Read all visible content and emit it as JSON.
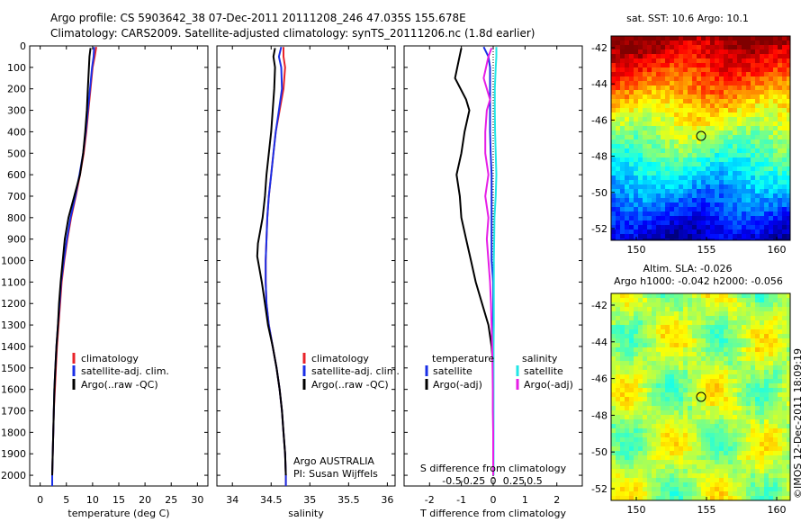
{
  "header": {
    "line1": "Argo profile: CS 5903642_38 07-Dec-2011 20111208_246 47.035S 155.678E",
    "line2": "Climatology: CARS2009. Satellite-adjusted climatology: synTS_20111206.nc (1.8d earlier)"
  },
  "colors": {
    "red": "#e8232a",
    "blue": "#1a2fe6",
    "black": "#000000",
    "cyan": "#22e6e6",
    "magenta": "#e61ee6"
  },
  "chart_data": [
    {
      "type": "line",
      "name": "temperature-profile",
      "xlabel": "temperature (deg C)",
      "xlim": [
        -2,
        32
      ],
      "xticks": [
        0,
        5,
        10,
        15,
        20,
        25,
        30
      ],
      "ylim": [
        2050,
        0
      ],
      "yticks": [
        0,
        100,
        200,
        300,
        400,
        500,
        600,
        700,
        800,
        900,
        1000,
        1100,
        1200,
        1300,
        1400,
        1500,
        1600,
        1700,
        1800,
        1900,
        2000
      ],
      "legend": [
        "climatology",
        "satellite-adj. clim.",
        "Argo(..raw -QC)"
      ],
      "series": [
        {
          "name": "climatology",
          "color": "red",
          "x": [
            10.7,
            10.4,
            10.0,
            9.6,
            9.2,
            8.8,
            8.3,
            7.6,
            6.8,
            5.9,
            5.2,
            4.6,
            4.1,
            3.8,
            3.5,
            3.2,
            3.0,
            2.8,
            2.6,
            2.5,
            2.4,
            2.3,
            2.3
          ],
          "y": [
            5,
            50,
            100,
            200,
            300,
            400,
            500,
            600,
            700,
            800,
            900,
            1000,
            1100,
            1200,
            1300,
            1400,
            1500,
            1600,
            1700,
            1800,
            1900,
            2000,
            2050
          ]
        },
        {
          "name": "satellite-adj. clim.",
          "color": "blue",
          "x": [
            10.3,
            10.2,
            9.9,
            9.5,
            9.1,
            8.7,
            8.2,
            7.5,
            6.7,
            5.8,
            5.1,
            4.5,
            4.0,
            3.7,
            3.4,
            3.1,
            2.9,
            2.7,
            2.6,
            2.5,
            2.4,
            2.3,
            2.3
          ],
          "y": [
            5,
            50,
            100,
            200,
            300,
            400,
            500,
            600,
            700,
            800,
            900,
            1000,
            1100,
            1200,
            1300,
            1400,
            1500,
            1600,
            1700,
            1800,
            1900,
            2000,
            2050
          ]
        },
        {
          "name": "Argo(..raw -QC)",
          "color": "black",
          "x": [
            9.6,
            9.4,
            9.3,
            9.1,
            8.9,
            8.6,
            8.2,
            7.6,
            6.5,
            5.4,
            4.7,
            4.3,
            3.9,
            3.6,
            3.4,
            3.1,
            2.9,
            2.7,
            2.6,
            2.5,
            2.4,
            2.3
          ],
          "y": [
            10,
            50,
            100,
            200,
            300,
            400,
            500,
            600,
            700,
            800,
            900,
            1000,
            1100,
            1200,
            1300,
            1400,
            1500,
            1600,
            1700,
            1800,
            1900,
            2000
          ]
        }
      ]
    },
    {
      "type": "line",
      "name": "salinity-profile",
      "xlabel": "salinity",
      "xlim": [
        33.8,
        36.1
      ],
      "xticks": [
        34,
        34.5,
        35,
        35.5,
        36
      ],
      "ylim": [
        2050,
        0
      ],
      "legend": [
        "climatology",
        "satellite-adj. clim.",
        "Argo(..raw -QC)"
      ],
      "annotation": [
        "Argo AUSTRALIA",
        "PI: Susan Wijffels"
      ],
      "series": [
        {
          "name": "climatology",
          "color": "red",
          "x": [
            34.66,
            34.66,
            34.68,
            34.66,
            34.61,
            34.56,
            34.53,
            34.5,
            34.47,
            34.45,
            34.44,
            34.43,
            34.43,
            34.44,
            34.47,
            34.52,
            34.57,
            34.61,
            34.64,
            34.66,
            34.68,
            34.69,
            34.69
          ],
          "y": [
            5,
            50,
            100,
            200,
            300,
            400,
            500,
            600,
            700,
            800,
            900,
            1000,
            1100,
            1200,
            1300,
            1400,
            1500,
            1600,
            1700,
            1800,
            1900,
            2000,
            2050
          ]
        },
        {
          "name": "satellite-adj. clim.",
          "color": "blue",
          "x": [
            34.63,
            34.6,
            34.63,
            34.64,
            34.6,
            34.56,
            34.53,
            34.5,
            34.47,
            34.45,
            34.44,
            34.43,
            34.43,
            34.44,
            34.47,
            34.52,
            34.57,
            34.61,
            34.64,
            34.66,
            34.68,
            34.69,
            34.69
          ],
          "y": [
            5,
            50,
            100,
            200,
            300,
            400,
            500,
            600,
            700,
            800,
            900,
            1000,
            1100,
            1200,
            1300,
            1400,
            1500,
            1600,
            1700,
            1800,
            1900,
            2000,
            2050
          ]
        },
        {
          "name": "Argo(..raw -QC)",
          "color": "black",
          "x": [
            34.55,
            34.53,
            34.55,
            34.54,
            34.52,
            34.5,
            34.47,
            34.44,
            34.42,
            34.39,
            34.33,
            34.32,
            34.38,
            34.42,
            34.46,
            34.52,
            34.57,
            34.61,
            34.64,
            34.66,
            34.68,
            34.69
          ],
          "y": [
            10,
            50,
            100,
            200,
            300,
            400,
            500,
            600,
            700,
            800,
            920,
            980,
            1100,
            1200,
            1300,
            1400,
            1500,
            1600,
            1700,
            1800,
            1900,
            2000
          ]
        }
      ]
    },
    {
      "type": "line",
      "name": "difference-profile",
      "xlabel": "T difference from climatology",
      "xlim": [
        -2.8,
        2.8
      ],
      "xticks": [
        -2,
        -1,
        0,
        1,
        2
      ],
      "x2label": "S difference from climatology",
      "x2ticks": [
        "-0.5",
        "-0.25",
        "0",
        "0.25",
        "0.5"
      ],
      "ylim": [
        2050,
        0
      ],
      "legend": {
        "temperature": "temperature",
        "salinity": "salinity",
        "t_sat": "satellite",
        "t_argo": "Argo(-adj)",
        "s_sat": "satellite",
        "s_argo": "Argo(-adj)"
      },
      "series": [
        {
          "name": "temperature satellite",
          "color": "blue",
          "x": [
            -0.3,
            -0.15,
            -0.1,
            -0.1,
            -0.1,
            -0.1,
            -0.08,
            -0.05,
            -0.05,
            -0.05,
            -0.05,
            -0.05,
            0,
            0,
            0,
            0,
            0,
            0,
            0,
            0,
            0,
            0
          ],
          "y": [
            5,
            50,
            100,
            200,
            300,
            400,
            500,
            600,
            700,
            800,
            900,
            1000,
            1100,
            1200,
            1300,
            1400,
            1500,
            1600,
            1700,
            1800,
            1900,
            2000
          ]
        },
        {
          "name": "temperature Argo(-adj)",
          "color": "black",
          "x": [
            -1.0,
            -1.1,
            -1.2,
            -0.85,
            -0.75,
            -0.9,
            -1.0,
            -1.15,
            -1.05,
            -1.0,
            -0.85,
            -0.7,
            -0.55,
            -0.35,
            -0.15,
            -0.05,
            0,
            0,
            0,
            0,
            0,
            0
          ],
          "y": [
            10,
            80,
            150,
            250,
            300,
            400,
            500,
            600,
            700,
            800,
            900,
            1000,
            1100,
            1200,
            1300,
            1400,
            1500,
            1600,
            1700,
            1800,
            1900,
            2000
          ]
        },
        {
          "name": "salinity satellite",
          "color": "cyan",
          "x": [
            0.1,
            0.1,
            0.08,
            0.05,
            0.05,
            0.06,
            0.08,
            0.1,
            0.08,
            0.04,
            0.03,
            0.02,
            0.02,
            0.02,
            0.02,
            0.01,
            0.01,
            0.01,
            0.01,
            0.01,
            0.01,
            0.01
          ],
          "y": [
            5,
            50,
            100,
            200,
            300,
            400,
            500,
            600,
            700,
            800,
            900,
            1000,
            1100,
            1200,
            1300,
            1400,
            1500,
            1600,
            1700,
            1800,
            1900,
            2000
          ]
        },
        {
          "name": "salinity Argo(-adj)",
          "color": "magenta",
          "x": [
            -0.05,
            -0.15,
            -0.3,
            -0.1,
            -0.2,
            -0.25,
            -0.25,
            -0.15,
            -0.25,
            -0.15,
            -0.2,
            -0.15,
            -0.1,
            -0.07,
            -0.05,
            -0.03,
            -0.02,
            -0.01,
            -0.01,
            0,
            0,
            0
          ],
          "y": [
            10,
            50,
            150,
            250,
            300,
            400,
            500,
            600,
            700,
            800,
            900,
            1000,
            1100,
            1200,
            1300,
            1400,
            1500,
            1600,
            1700,
            1800,
            1900,
            2000
          ]
        }
      ]
    }
  ],
  "maps": {
    "sst": {
      "title": "sat. SST: 10.6 Argo: 10.1",
      "yticks": [
        "-42",
        "-44",
        "-46",
        "-48",
        "-50",
        "-52"
      ],
      "xticks": [
        "150",
        "155",
        "160"
      ]
    },
    "sla": {
      "title1": "Altim. SLA: -0.026",
      "title2": "Argo h1000: -0.042 h2000: -0.056",
      "yticks": [
        "-42",
        "-44",
        "-46",
        "-48",
        "-50",
        "-52"
      ],
      "xticks": [
        "150",
        "155",
        "160"
      ]
    }
  },
  "footer": {
    "credit": "©IMOS 12-Dec-2011 18:09:19"
  }
}
